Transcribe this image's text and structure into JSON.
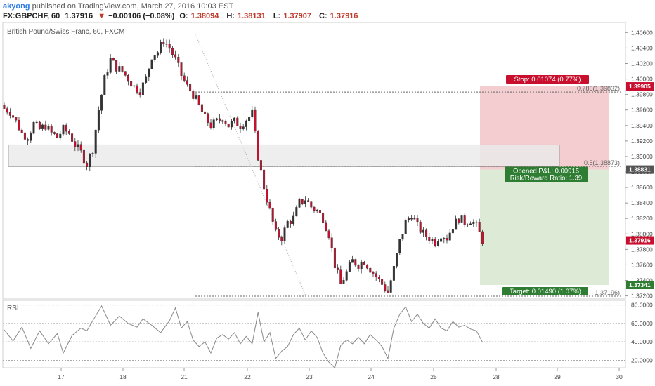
{
  "header": {
    "user": "akyong",
    "published_text": "published on TradingView.com, March 27, 2016 10:03 EST",
    "symbol": "FX:GBPCHF, 60",
    "last": "1.37916",
    "change_arrow": "▼",
    "change": "−0.00106 (−0.08%)",
    "o_label": "O:",
    "o": "1.38094",
    "h_label": "H:",
    "h": "1.38131",
    "l_label": "L:",
    "l": "1.37907",
    "c_label": "C:",
    "c": "1.37916"
  },
  "chart": {
    "title": "British Pound/Swiss Franc, 60, FXCM",
    "rsi_label": "RSI"
  },
  "chart_data": {
    "type": "candlestick",
    "title": "British Pound/Swiss Franc, 60, FXCM",
    "price_ticks": [
      "1.40600",
      "1.40400",
      "1.40200",
      "1.40000",
      "1.39800",
      "1.39600",
      "1.39400",
      "1.39200",
      "1.39000",
      "1.38800",
      "1.38600",
      "1.38400",
      "1.38200",
      "1.38000",
      "1.37800",
      "1.37600",
      "1.37400",
      "1.37200"
    ],
    "ylim": [
      1.3716,
      1.4073
    ],
    "x_ticks": [
      "17",
      "18",
      "19",
      "20",
      "21",
      "22",
      "23",
      "24",
      "25",
      "26",
      "27",
      "28",
      "29",
      "30"
    ],
    "rsi_ticks": [
      "80.0000",
      "60.0000",
      "40.0000",
      "20.0000"
    ],
    "rsi_ylim": [
      12,
      85
    ],
    "close_path": [
      [
        0,
        1.3962
      ],
      [
        2,
        1.3958
      ],
      [
        4,
        1.3945
      ],
      [
        6,
        1.393
      ],
      [
        8,
        1.3925
      ],
      [
        10,
        1.3942
      ],
      [
        12,
        1.3935
      ],
      [
        14,
        1.394
      ],
      [
        16,
        1.393
      ],
      [
        18,
        1.3925
      ],
      [
        20,
        1.3935
      ],
      [
        22,
        1.393
      ],
      [
        24,
        1.3915
      ],
      [
        26,
        1.3905
      ],
      [
        28,
        1.389
      ],
      [
        30,
        1.391
      ],
      [
        32,
        1.396
      ],
      [
        34,
        1.4
      ],
      [
        36,
        1.4025
      ],
      [
        38,
        1.4015
      ],
      [
        40,
        1.401
      ],
      [
        42,
        1.4
      ],
      [
        44,
        1.399
      ],
      [
        46,
        1.3985
      ],
      [
        48,
        1.4
      ],
      [
        50,
        1.403
      ],
      [
        52,
        1.4035
      ],
      [
        54,
        1.405
      ],
      [
        56,
        1.404
      ],
      [
        58,
        1.4025
      ],
      [
        60,
        1.4005
      ],
      [
        62,
        1.399
      ],
      [
        64,
        1.398
      ],
      [
        66,
        1.3965
      ],
      [
        68,
        1.395
      ],
      [
        70,
        1.394
      ],
      [
        72,
        1.3945
      ],
      [
        74,
        1.395
      ],
      [
        76,
        1.394
      ],
      [
        78,
        1.3945
      ],
      [
        80,
        1.394
      ],
      [
        82,
        1.3948
      ],
      [
        84,
        1.3955
      ],
      [
        86,
        1.39
      ],
      [
        88,
        1.386
      ],
      [
        90,
        1.383
      ],
      [
        92,
        1.38
      ],
      [
        94,
        1.3795
      ],
      [
        96,
        1.3815
      ],
      [
        98,
        1.382
      ],
      [
        100,
        1.384
      ],
      [
        102,
        1.3845
      ],
      [
        104,
        1.3835
      ],
      [
        106,
        1.383
      ],
      [
        108,
        1.382
      ],
      [
        110,
        1.38
      ],
      [
        112,
        1.376
      ],
      [
        114,
        1.3735
      ],
      [
        116,
        1.375
      ],
      [
        118,
        1.3765
      ],
      [
        120,
        1.376
      ],
      [
        122,
        1.3765
      ],
      [
        124,
        1.3755
      ],
      [
        126,
        1.3745
      ],
      [
        128,
        1.3735
      ],
      [
        130,
        1.3725
      ],
      [
        132,
        1.3755
      ],
      [
        134,
        1.379
      ],
      [
        136,
        1.3815
      ],
      [
        138,
        1.3825
      ],
      [
        140,
        1.381
      ],
      [
        142,
        1.38
      ],
      [
        144,
        1.3795
      ],
      [
        146,
        1.379
      ],
      [
        148,
        1.38
      ],
      [
        150,
        1.3795
      ],
      [
        152,
        1.381
      ],
      [
        154,
        1.382
      ],
      [
        156,
        1.3815
      ],
      [
        158,
        1.3818
      ],
      [
        160,
        1.381
      ],
      [
        162,
        1.3792
      ]
    ],
    "rsi_path": [
      [
        0,
        53
      ],
      [
        3,
        41
      ],
      [
        6,
        56
      ],
      [
        9,
        33
      ],
      [
        12,
        52
      ],
      [
        15,
        38
      ],
      [
        18,
        49
      ],
      [
        20,
        28
      ],
      [
        23,
        47
      ],
      [
        26,
        55
      ],
      [
        28,
        52
      ],
      [
        30,
        63
      ],
      [
        33,
        79
      ],
      [
        36,
        58
      ],
      [
        39,
        68
      ],
      [
        42,
        60
      ],
      [
        45,
        56
      ],
      [
        47,
        65
      ],
      [
        50,
        58
      ],
      [
        53,
        50
      ],
      [
        56,
        63
      ],
      [
        58,
        77
      ],
      [
        60,
        55
      ],
      [
        62,
        62
      ],
      [
        64,
        42
      ],
      [
        66,
        35
      ],
      [
        68,
        40
      ],
      [
        70,
        28
      ],
      [
        72,
        44
      ],
      [
        74,
        48
      ],
      [
        76,
        43
      ],
      [
        78,
        50
      ],
      [
        80,
        38
      ],
      [
        82,
        46
      ],
      [
        84,
        38
      ],
      [
        86,
        72
      ],
      [
        88,
        40
      ],
      [
        90,
        50
      ],
      [
        92,
        22
      ],
      [
        94,
        30
      ],
      [
        96,
        35
      ],
      [
        98,
        48
      ],
      [
        100,
        55
      ],
      [
        102,
        42
      ],
      [
        104,
        52
      ],
      [
        106,
        45
      ],
      [
        108,
        28
      ],
      [
        110,
        18
      ],
      [
        112,
        12
      ],
      [
        114,
        36
      ],
      [
        116,
        42
      ],
      [
        118,
        38
      ],
      [
        120,
        45
      ],
      [
        122,
        38
      ],
      [
        124,
        48
      ],
      [
        126,
        42
      ],
      [
        128,
        35
      ],
      [
        130,
        22
      ],
      [
        132,
        55
      ],
      [
        134,
        70
      ],
      [
        136,
        78
      ],
      [
        138,
        62
      ],
      [
        140,
        70
      ],
      [
        142,
        60
      ],
      [
        144,
        55
      ],
      [
        146,
        65
      ],
      [
        148,
        55
      ],
      [
        150,
        52
      ],
      [
        152,
        62
      ],
      [
        154,
        56
      ],
      [
        156,
        58
      ],
      [
        158,
        54
      ],
      [
        160,
        52
      ],
      [
        162,
        40
      ]
    ],
    "fib_levels": [
      {
        "label": "0.786(1.39832)",
        "price": 1.39832
      },
      {
        "label": "0.5(1.38873)",
        "price": 1.38873
      },
      {
        "label": "1.37196)",
        "price": 1.37196
      }
    ],
    "support_zone": [
      1.3887,
      1.3915
    ],
    "position": {
      "entry": 1.38831,
      "stop": 1.39905,
      "target": 1.37341,
      "stop_label": "Stop: 0.01074 (0.77%)",
      "pnl_label": "Opened P&L: 0.00915",
      "rr_label": "Risk/Reward Ratio: 1.39",
      "target_label": "Target: 0.01490 (1.07%)"
    },
    "price_tags": [
      {
        "text": "1.39905",
        "price": 1.39905,
        "color": "#c8102e"
      },
      {
        "text": "1.38831",
        "price": 1.38831,
        "color": "#555555"
      },
      {
        "text": "1.37916",
        "price": 1.37916,
        "color": "#c8102e"
      },
      {
        "text": "1.37341",
        "price": 1.37341,
        "color": "#2e7d32"
      }
    ],
    "colors": {
      "up": "#333333",
      "down": "#c8102e",
      "stop_zone": "#f2c4c8",
      "target_zone": "#d9e8d2"
    }
  }
}
